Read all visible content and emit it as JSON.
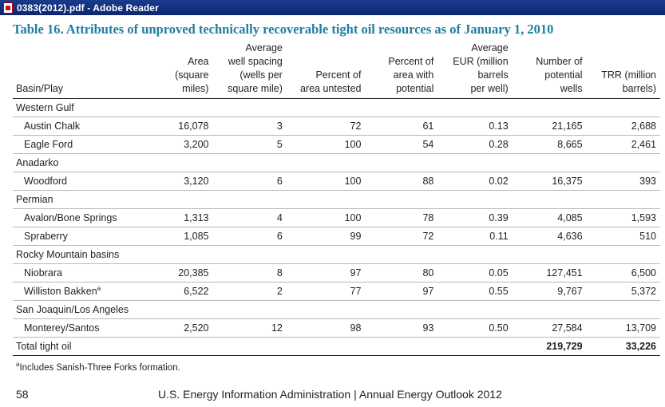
{
  "window": {
    "title": "0383(2012).pdf - Adobe Reader",
    "icon": "pdf-file-icon"
  },
  "document": {
    "title": "Table 16. Attributes of unproved technically recoverable tight oil resources as of January 1, 2010",
    "columns": [
      "Basin/Play",
      "Area (square miles)",
      "Average well spacing (wells per square mile)",
      "Percent of area untested",
      "Percent of area with potential",
      "Average EUR (million barrels per well)",
      "Number of potential wells",
      "TRR (million barrels)"
    ],
    "header_lines": [
      [
        "Basin/Play"
      ],
      [
        "Area",
        "(square",
        "miles)"
      ],
      [
        "Average",
        "well spacing",
        "(wells per",
        "square mile)"
      ],
      [
        "Percent of",
        "area untested"
      ],
      [
        "Percent of",
        "area with",
        "potential"
      ],
      [
        "Average",
        "EUR (million",
        "barrels",
        "per well)"
      ],
      [
        "Number of",
        "potential",
        "wells"
      ],
      [
        "TRR (million",
        "barrels)"
      ]
    ],
    "groups": [
      {
        "name": "Western Gulf",
        "rows": [
          {
            "play": "Austin Chalk",
            "area": "16,078",
            "spacing": "3",
            "untested": "72",
            "potential": "61",
            "eur": "0.13",
            "wells": "21,165",
            "trr": "2,688"
          },
          {
            "play": "Eagle Ford",
            "area": "3,200",
            "spacing": "5",
            "untested": "100",
            "potential": "54",
            "eur": "0.28",
            "wells": "8,665",
            "trr": "2,461"
          }
        ]
      },
      {
        "name": "Anadarko",
        "rows": [
          {
            "play": "Woodford",
            "area": "3,120",
            "spacing": "6",
            "untested": "100",
            "potential": "88",
            "eur": "0.02",
            "wells": "16,375",
            "trr": "393"
          }
        ]
      },
      {
        "name": "Permian",
        "rows": [
          {
            "play": "Avalon/Bone Springs",
            "area": "1,313",
            "spacing": "4",
            "untested": "100",
            "potential": "78",
            "eur": "0.39",
            "wells": "4,085",
            "trr": "1,593"
          },
          {
            "play": "Spraberry",
            "area": "1,085",
            "spacing": "6",
            "untested": "99",
            "potential": "72",
            "eur": "0.11",
            "wells": "4,636",
            "trr": "510"
          }
        ]
      },
      {
        "name": "Rocky Mountain basins",
        "rows": [
          {
            "play": "Niobrara",
            "area": "20,385",
            "spacing": "8",
            "untested": "97",
            "potential": "80",
            "eur": "0.05",
            "wells": "127,451",
            "trr": "6,500"
          },
          {
            "play": "Williston Bakken",
            "footnote_mark": "a",
            "area": "6,522",
            "spacing": "2",
            "untested": "77",
            "potential": "97",
            "eur": "0.55",
            "wells": "9,767",
            "trr": "5,372"
          }
        ]
      },
      {
        "name": "San Joaquin/Los Angeles",
        "rows": [
          {
            "play": "Monterey/Santos",
            "area": "2,520",
            "spacing": "12",
            "untested": "98",
            "potential": "93",
            "eur": "0.50",
            "wells": "27,584",
            "trr": "13,709"
          }
        ]
      }
    ],
    "total": {
      "label": "Total tight oil",
      "wells": "219,729",
      "trr": "33,226"
    },
    "footnote": {
      "mark": "a",
      "text": "Includes Sanish-Three Forks formation."
    },
    "page_number": "58",
    "footer": "U.S. Energy Information Administration | Annual Energy Outlook 2012"
  }
}
